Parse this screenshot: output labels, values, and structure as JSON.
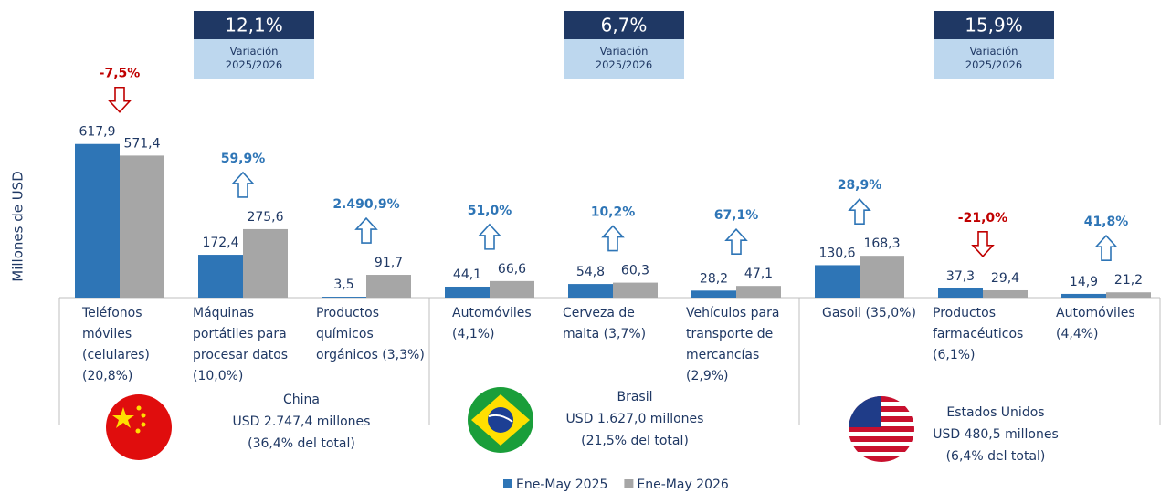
{
  "chart_data": {
    "type": "bar",
    "y_axis_label": "Millones de USD",
    "ylim": [
      0,
      650
    ],
    "categories": [
      "Teléfonos móviles (celulares) (20,8%)",
      "Máquinas portátiles para procesar datos (10,0%)",
      "Productos químicos orgánicos (3,3%)",
      "Automóviles (4,1%)",
      "Cerveza de malta (3,7%)",
      "Vehículos para transporte de mercancías (2,9%)",
      "Gasoil (35,0%)",
      "Productos farmacéuticos (6,1%)",
      "Automóviles (4,4%)"
    ],
    "series": [
      {
        "name": "Ene-May 2025",
        "color": "#2e75b6",
        "values": [
          617.9,
          172.4,
          3.5,
          44.1,
          54.8,
          28.2,
          130.6,
          37.3,
          14.9
        ],
        "value_labels": [
          "617,9",
          "172,4",
          "3,5",
          "44,1",
          "54,8",
          "28,2",
          "130,6",
          "37,3",
          "14,9"
        ]
      },
      {
        "name": "Ene-May 2026",
        "color": "#a6a6a6",
        "values": [
          571.4,
          275.6,
          91.7,
          66.6,
          60.3,
          47.1,
          168.3,
          29.4,
          21.2
        ],
        "value_labels": [
          "571,4",
          "275,6",
          "91,7",
          "66,6",
          "60,3",
          "47,1",
          "168,3",
          "29,4",
          "21,2"
        ]
      }
    ],
    "changes": [
      {
        "value": -7.5,
        "label": "-7,5%"
      },
      {
        "value": 59.9,
        "label": "59,9%"
      },
      {
        "value": 2490.9,
        "label": "2.490,9%"
      },
      {
        "value": 51.0,
        "label": "51,0%"
      },
      {
        "value": 10.2,
        "label": "10,2%"
      },
      {
        "value": 67.1,
        "label": "67,1%"
      },
      {
        "value": 28.9,
        "label": "28,9%"
      },
      {
        "value": -21.0,
        "label": "-21,0%"
      },
      {
        "value": 41.8,
        "label": "41,8%"
      }
    ],
    "groups": [
      {
        "name": "China",
        "total": "USD 2.747,4 millones",
        "share": "(36,4% del total)",
        "variation": {
          "value": 12.1,
          "label": "12,1%"
        },
        "variation_caption": "Variación 2025/2026"
      },
      {
        "name": "Brasil",
        "total": "USD 1.627,0 millones",
        "share": "(21,5% del total)",
        "variation": {
          "value": 6.7,
          "label": "6,7%"
        },
        "variation_caption": "Variación 2025/2026"
      },
      {
        "name": "Estados Unidos",
        "total": "USD 480,5 millones",
        "share": "(6,4% del total)",
        "variation": {
          "value": 15.9,
          "label": "15,9%"
        },
        "variation_caption": "Variación 2025/2026"
      }
    ]
  }
}
